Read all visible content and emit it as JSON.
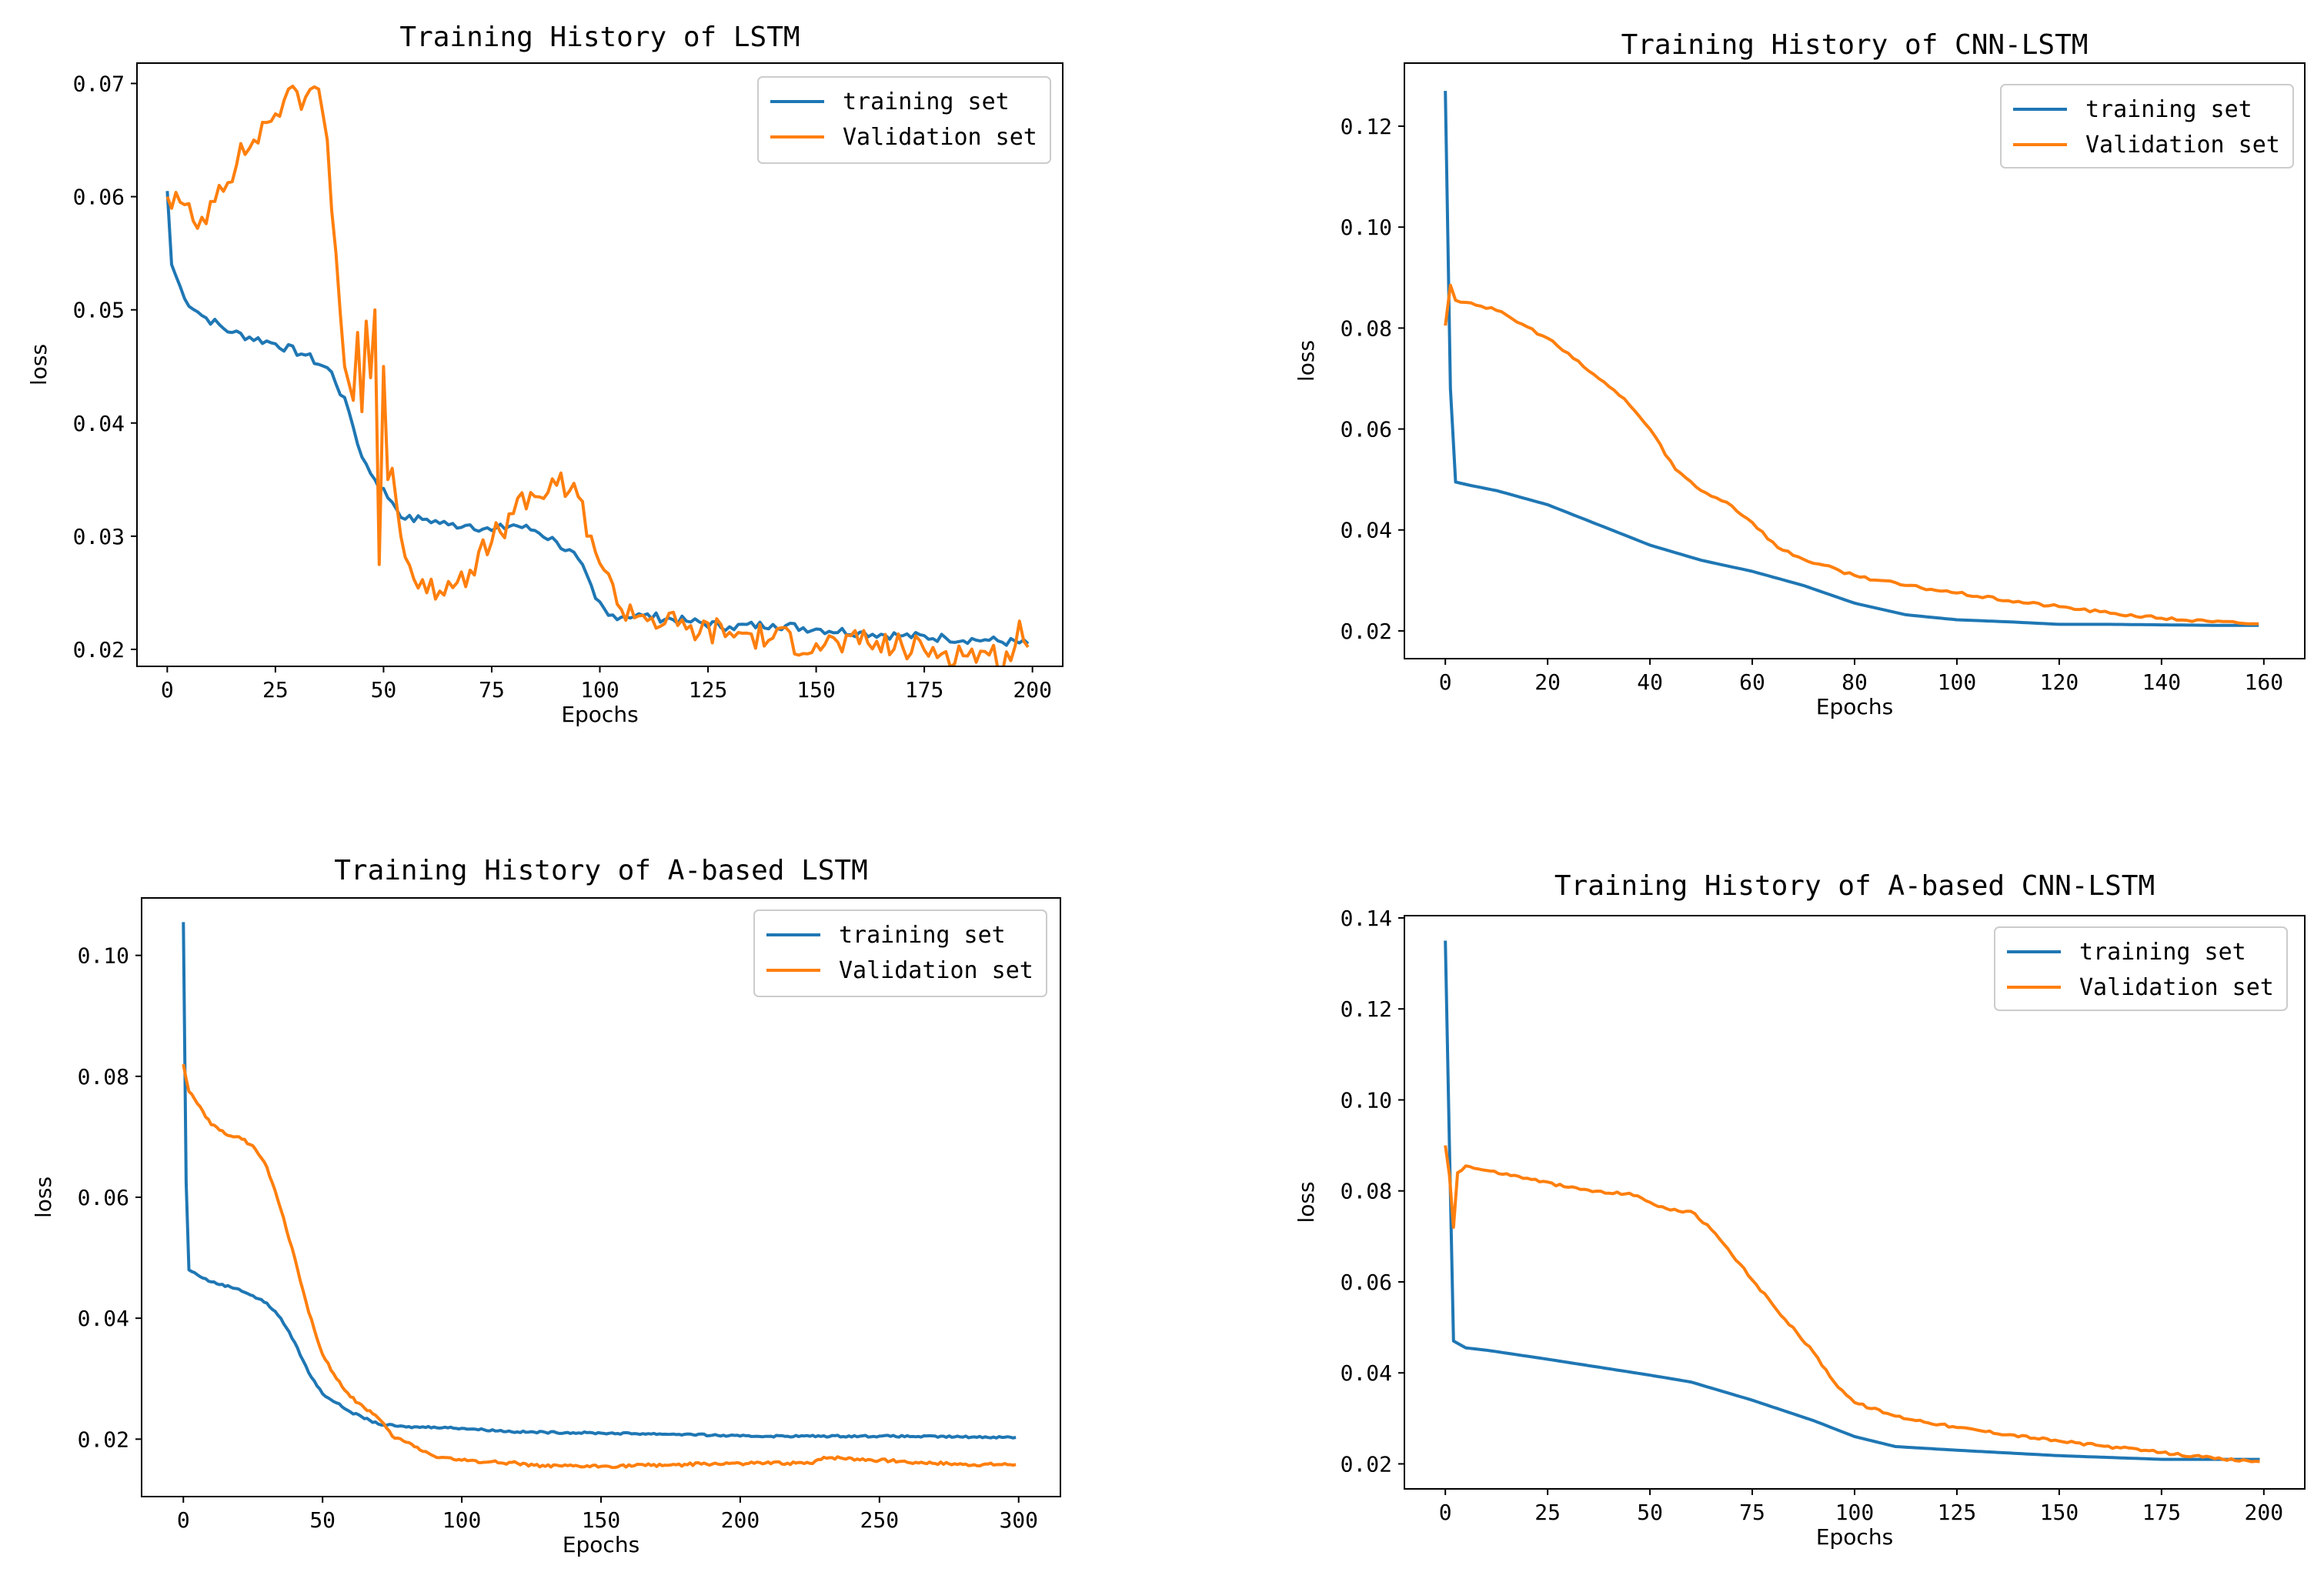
{
  "colors": {
    "training": "#1f77b4",
    "validation": "#ff7f0e",
    "frame": "#000000",
    "legend_border": "#cccccc"
  },
  "chart_data": [
    {
      "type": "line",
      "title": "Training History of LSTM",
      "xlabel": "Epochs",
      "ylabel": "loss",
      "xlim": [
        -7,
        207
      ],
      "ylim": [
        0.0185,
        0.0718
      ],
      "xticks": [
        0,
        25,
        50,
        75,
        100,
        125,
        150,
        175,
        200
      ],
      "yticks": [
        0.02,
        0.03,
        0.04,
        0.05,
        0.06,
        0.07
      ],
      "ytick_labels": [
        "0.02",
        "0.03",
        "0.04",
        "0.05",
        "0.06",
        "0.07"
      ],
      "legend": {
        "loc": "top-right",
        "entries": [
          "training set",
          "Validation set"
        ]
      },
      "series": [
        {
          "name": "training set",
          "color": "#1f77b4",
          "noise": 0.0004,
          "points": [
            [
              0,
              0.0605
            ],
            [
              1,
              0.054
            ],
            [
              4,
              0.051
            ],
            [
              8,
              0.0495
            ],
            [
              15,
              0.048
            ],
            [
              25,
              0.047
            ],
            [
              32,
              0.046
            ],
            [
              38,
              0.0445
            ],
            [
              42,
              0.041
            ],
            [
              45,
              0.037
            ],
            [
              48,
              0.035
            ],
            [
              52,
              0.033
            ],
            [
              55,
              0.0315
            ],
            [
              60,
              0.0315
            ],
            [
              65,
              0.031
            ],
            [
              70,
              0.031
            ],
            [
              75,
              0.0305
            ],
            [
              80,
              0.031
            ],
            [
              85,
              0.0305
            ],
            [
              90,
              0.0295
            ],
            [
              95,
              0.028
            ],
            [
              99,
              0.0245
            ],
            [
              102,
              0.023
            ],
            [
              110,
              0.023
            ],
            [
              120,
              0.0225
            ],
            [
              130,
              0.022
            ],
            [
              140,
              0.0222
            ],
            [
              150,
              0.0218
            ],
            [
              160,
              0.0215
            ],
            [
              170,
              0.0212
            ],
            [
              180,
              0.021
            ],
            [
              190,
              0.0208
            ],
            [
              199,
              0.0205
            ]
          ]
        },
        {
          "name": "Validation set",
          "color": "#ff7f0e",
          "noise": 0.0013,
          "points": [
            [
              0,
              0.06
            ],
            [
              3,
              0.0595
            ],
            [
              7,
              0.0572
            ],
            [
              12,
              0.061
            ],
            [
              20,
              0.065
            ],
            [
              27,
              0.0685
            ],
            [
              32,
              0.0688
            ],
            [
              35,
              0.0695
            ],
            [
              37,
              0.065
            ],
            [
              39,
              0.055
            ],
            [
              41,
              0.045
            ],
            [
              43,
              0.042
            ],
            [
              44,
              0.048
            ],
            [
              45,
              0.041
            ],
            [
              46,
              0.049
            ],
            [
              47,
              0.044
            ],
            [
              48,
              0.05
            ],
            [
              49,
              0.0275
            ],
            [
              50,
              0.045
            ],
            [
              51,
              0.035
            ],
            [
              52,
              0.036
            ],
            [
              54,
              0.03
            ],
            [
              57,
              0.0262
            ],
            [
              60,
              0.025
            ],
            [
              65,
              0.026
            ],
            [
              70,
              0.027
            ],
            [
              75,
              0.0295
            ],
            [
              80,
              0.032
            ],
            [
              85,
              0.0335
            ],
            [
              90,
              0.0345
            ],
            [
              95,
              0.0335
            ],
            [
              98,
              0.03
            ],
            [
              101,
              0.027
            ],
            [
              104,
              0.024
            ],
            [
              110,
              0.023
            ],
            [
              120,
              0.0218
            ],
            [
              130,
              0.0215
            ],
            [
              140,
              0.021
            ],
            [
              150,
              0.0205
            ],
            [
              160,
              0.0205
            ],
            [
              170,
              0.0202
            ],
            [
              180,
              0.0198
            ],
            [
              190,
              0.0195
            ],
            [
              195,
              0.019
            ],
            [
              197,
              0.0225
            ],
            [
              199,
              0.0202
            ]
          ]
        }
      ]
    },
    {
      "type": "line",
      "title": "Training History of CNN-LSTM",
      "xlabel": "Epochs",
      "ylabel": "loss",
      "xlim": [
        -8,
        168
      ],
      "ylim": [
        0.0145,
        0.1325
      ],
      "xticks": [
        0,
        20,
        40,
        60,
        80,
        100,
        120,
        140,
        160
      ],
      "yticks": [
        0.02,
        0.04,
        0.06,
        0.08,
        0.1,
        0.12
      ],
      "ytick_labels": [
        "0.02",
        "0.04",
        "0.06",
        "0.08",
        "0.10",
        "0.12"
      ],
      "legend": {
        "loc": "top-right",
        "entries": [
          "training set",
          "Validation set"
        ]
      },
      "series": [
        {
          "name": "training set",
          "color": "#1f77b4",
          "noise": 0,
          "points": [
            [
              0,
              0.127
            ],
            [
              1,
              0.068
            ],
            [
              2,
              0.0495
            ],
            [
              5,
              0.0488
            ],
            [
              10,
              0.0478
            ],
            [
              20,
              0.045
            ],
            [
              30,
              0.041
            ],
            [
              40,
              0.037
            ],
            [
              50,
              0.034
            ],
            [
              60,
              0.0318
            ],
            [
              70,
              0.029
            ],
            [
              80,
              0.0255
            ],
            [
              90,
              0.0232
            ],
            [
              100,
              0.0222
            ],
            [
              110,
              0.0218
            ],
            [
              120,
              0.0213
            ],
            [
              130,
              0.0213
            ],
            [
              140,
              0.0212
            ],
            [
              150,
              0.0211
            ],
            [
              159,
              0.0211
            ]
          ]
        },
        {
          "name": "Validation set",
          "color": "#ff7f0e",
          "noise": 0.0003,
          "points": [
            [
              0,
              0.0805
            ],
            [
              1,
              0.0885
            ],
            [
              2,
              0.0855
            ],
            [
              5,
              0.085
            ],
            [
              10,
              0.0835
            ],
            [
              20,
              0.078
            ],
            [
              30,
              0.07
            ],
            [
              35,
              0.066
            ],
            [
              40,
              0.06
            ],
            [
              45,
              0.052
            ],
            [
              50,
              0.0478
            ],
            [
              55,
              0.0455
            ],
            [
              60,
              0.0415
            ],
            [
              65,
              0.0365
            ],
            [
              70,
              0.0342
            ],
            [
              80,
              0.031
            ],
            [
              90,
              0.029
            ],
            [
              100,
              0.0275
            ],
            [
              110,
              0.026
            ],
            [
              120,
              0.0248
            ],
            [
              130,
              0.0235
            ],
            [
              140,
              0.0225
            ],
            [
              150,
              0.0218
            ],
            [
              159,
              0.0214
            ]
          ]
        }
      ]
    },
    {
      "type": "line",
      "title": "Training History of A-based LSTM",
      "xlabel": "Epochs",
      "ylabel": "loss",
      "xlim": [
        -15,
        315
      ],
      "ylim": [
        0.0105,
        0.1095
      ],
      "xticks": [
        0,
        50,
        100,
        150,
        200,
        250,
        300
      ],
      "yticks": [
        0.02,
        0.04,
        0.06,
        0.08,
        0.1
      ],
      "ytick_labels": [
        "0.02",
        "0.04",
        "0.06",
        "0.08",
        "0.10"
      ],
      "legend": {
        "loc": "top-right",
        "entries": [
          "training set",
          "Validation set"
        ]
      },
      "series": [
        {
          "name": "training set",
          "color": "#1f77b4",
          "noise": 0.00015,
          "points": [
            [
              0,
              0.1055
            ],
            [
              1,
              0.0625
            ],
            [
              2,
              0.048
            ],
            [
              5,
              0.0472
            ],
            [
              10,
              0.046
            ],
            [
              20,
              0.0448
            ],
            [
              30,
              0.0425
            ],
            [
              35,
              0.04
            ],
            [
              40,
              0.036
            ],
            [
              45,
              0.031
            ],
            [
              50,
              0.0275
            ],
            [
              60,
              0.0245
            ],
            [
              70,
              0.0225
            ],
            [
              80,
              0.022
            ],
            [
              90,
              0.022
            ],
            [
              100,
              0.0218
            ],
            [
              120,
              0.0212
            ],
            [
              150,
              0.021
            ],
            [
              180,
              0.0208
            ],
            [
              200,
              0.0205
            ],
            [
              250,
              0.0205
            ],
            [
              299,
              0.0203
            ]
          ]
        },
        {
          "name": "Validation set",
          "color": "#ff7f0e",
          "noise": 0.00025,
          "points": [
            [
              0,
              0.082
            ],
            [
              2,
              0.0775
            ],
            [
              5,
              0.0755
            ],
            [
              10,
              0.072
            ],
            [
              15,
              0.0705
            ],
            [
              20,
              0.07
            ],
            [
              25,
              0.0685
            ],
            [
              30,
              0.065
            ],
            [
              35,
              0.058
            ],
            [
              40,
              0.05
            ],
            [
              45,
              0.041
            ],
            [
              50,
              0.034
            ],
            [
              55,
              0.03
            ],
            [
              60,
              0.027
            ],
            [
              70,
              0.0235
            ],
            [
              75,
              0.0205
            ],
            [
              80,
              0.0195
            ],
            [
              90,
              0.0172
            ],
            [
              100,
              0.0165
            ],
            [
              120,
              0.016
            ],
            [
              130,
              0.0155
            ],
            [
              150,
              0.0155
            ],
            [
              200,
              0.016
            ],
            [
              225,
              0.016
            ],
            [
              230,
              0.017
            ],
            [
              250,
              0.0165
            ],
            [
              280,
              0.0158
            ],
            [
              299,
              0.0158
            ]
          ]
        }
      ]
    },
    {
      "type": "line",
      "title": "Training History of A-based CNN-LSTM",
      "xlabel": "Epochs",
      "ylabel": "loss",
      "xlim": [
        -10,
        210
      ],
      "ylim": [
        0.0145,
        0.1405
      ],
      "xticks": [
        0,
        25,
        50,
        75,
        100,
        125,
        150,
        175,
        200
      ],
      "yticks": [
        0.02,
        0.04,
        0.06,
        0.08,
        0.1,
        0.12,
        0.14
      ],
      "ytick_labels": [
        "0.02",
        "0.04",
        "0.06",
        "0.08",
        "0.10",
        "0.12",
        "0.14"
      ],
      "legend": {
        "loc": "top-right",
        "entries": [
          "training set",
          "Validation set"
        ]
      },
      "series": [
        {
          "name": "training set",
          "color": "#1f77b4",
          "noise": 0,
          "points": [
            [
              0,
              0.135
            ],
            [
              1,
              0.09
            ],
            [
              2,
              0.047
            ],
            [
              5,
              0.0455
            ],
            [
              10,
              0.045
            ],
            [
              25,
              0.043
            ],
            [
              50,
              0.0395
            ],
            [
              60,
              0.038
            ],
            [
              75,
              0.034
            ],
            [
              90,
              0.0295
            ],
            [
              100,
              0.026
            ],
            [
              110,
              0.0238
            ],
            [
              125,
              0.023
            ],
            [
              150,
              0.0218
            ],
            [
              175,
              0.021
            ],
            [
              199,
              0.021
            ]
          ]
        },
        {
          "name": "Validation set",
          "color": "#ff7f0e",
          "noise": 0.0003,
          "points": [
            [
              0,
              0.09
            ],
            [
              1,
              0.0835
            ],
            [
              2,
              0.072
            ],
            [
              3,
              0.084
            ],
            [
              5,
              0.0855
            ],
            [
              10,
              0.0845
            ],
            [
              20,
              0.0828
            ],
            [
              30,
              0.0808
            ],
            [
              40,
              0.0795
            ],
            [
              45,
              0.0795
            ],
            [
              50,
              0.0775
            ],
            [
              55,
              0.0758
            ],
            [
              60,
              0.0755
            ],
            [
              65,
              0.0715
            ],
            [
              70,
              0.066
            ],
            [
              80,
              0.055
            ],
            [
              90,
              0.0445
            ],
            [
              95,
              0.038
            ],
            [
              100,
              0.0335
            ],
            [
              110,
              0.0305
            ],
            [
              125,
              0.028
            ],
            [
              150,
              0.025
            ],
            [
              165,
              0.0235
            ],
            [
              175,
              0.0225
            ],
            [
              185,
              0.0215
            ],
            [
              190,
              0.021
            ],
            [
              199,
              0.0205
            ]
          ]
        }
      ]
    }
  ]
}
